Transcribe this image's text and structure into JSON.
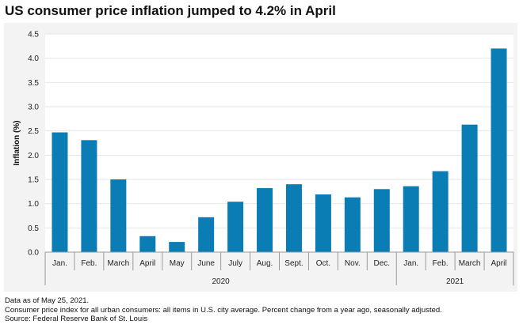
{
  "title": "US consumer price inflation jumped to 4.2% in April",
  "chart_data": {
    "type": "bar",
    "categories": [
      "Jan.",
      "Feb.",
      "March",
      "April",
      "May",
      "June",
      "July",
      "Aug.",
      "Sept.",
      "Oct.",
      "Nov.",
      "Dec.",
      "Jan.",
      "Feb.",
      "March",
      "April"
    ],
    "values": [
      2.47,
      2.31,
      1.5,
      0.33,
      0.21,
      0.72,
      1.04,
      1.32,
      1.4,
      1.19,
      1.13,
      1.3,
      1.36,
      1.67,
      2.63,
      4.2
    ],
    "groups": [
      {
        "label": "2020",
        "count": 12
      },
      {
        "label": "2021",
        "count": 4
      }
    ],
    "ylabel": "Inflation (%)",
    "ylim": [
      0,
      4.5
    ],
    "yticks": [
      "0.0",
      "0.5",
      "1.0",
      "1.5",
      "2.0",
      "2.5",
      "3.0",
      "3.5",
      "4.0",
      "4.5"
    ],
    "bar_color": "#0a7db5",
    "grid": true
  },
  "notes": [
    "Data as of May 25, 2021.",
    "Consumer price index for all urban consumers: all items in U.S. city average. Percent change from a year ago, seasonally adjusted.",
    "Source: Federal Reserve Bank of St. Louis"
  ]
}
